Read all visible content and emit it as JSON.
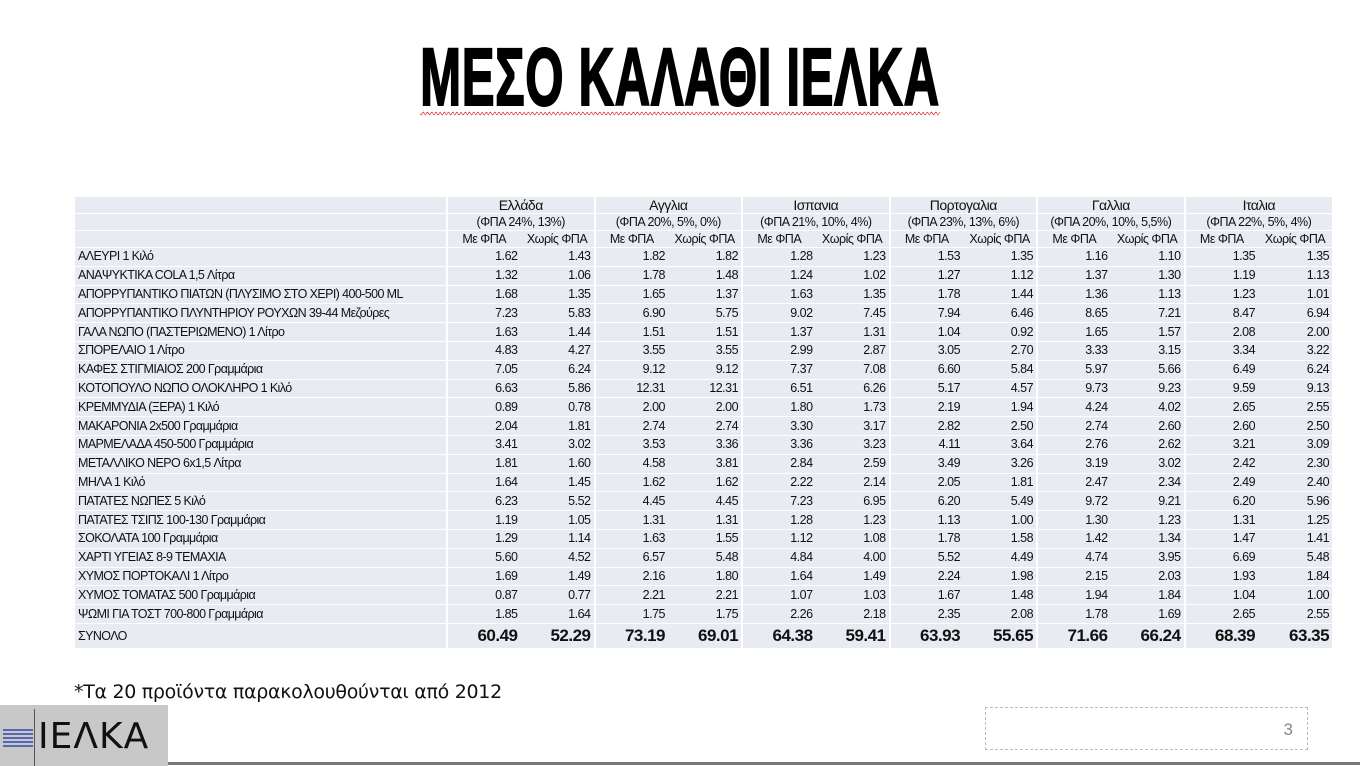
{
  "title": "ΜΕΣΟ ΚΑΛΑΘΙ ΙΕΛΚΑ",
  "table": {
    "countries": [
      {
        "name": "Ελλάδα",
        "vat": "(ΦΠΑ 24%, 13%)"
      },
      {
        "name": "Αγγλια",
        "vat": "(ΦΠΑ 20%, 5%, 0%)"
      },
      {
        "name": "Ισπανια",
        "vat": "(ΦΠΑ 21%, 10%, 4%)"
      },
      {
        "name": "Πορτογαλια",
        "vat": "(ΦΠΑ 23%, 13%, 6%)"
      },
      {
        "name": "Γαλλια",
        "vat": "(ΦΠΑ 20%, 10%, 5,5%)"
      },
      {
        "name": "Ιταλια",
        "vat": "(ΦΠΑ 22%, 5%, 4%)"
      }
    ],
    "subheaders": [
      "Με ΦΠΑ",
      "Χωρίς ΦΠΑ"
    ],
    "rows": [
      {
        "label": "ΑΛΕΥΡΙ 1 Κιλό",
        "values": [
          "1.62",
          "1.43",
          "1.82",
          "1.82",
          "1.28",
          "1.23",
          "1.53",
          "1.35",
          "1.16",
          "1.10",
          "1.35",
          "1.35"
        ]
      },
      {
        "label": "ΑΝΑΨΥΚΤΙΚΑ COLA 1,5 Λίτρα",
        "values": [
          "1.32",
          "1.06",
          "1.78",
          "1.48",
          "1.24",
          "1.02",
          "1.27",
          "1.12",
          "1.37",
          "1.30",
          "1.19",
          "1.13"
        ]
      },
      {
        "label": "ΑΠΟΡΡΥΠΑΝΤΙΚΟ ΠΙΑΤΩΝ (ΠΛΥΣΙΜΟ ΣΤΟ ΧΕΡΙ) 400-500 ML",
        "values": [
          "1.68",
          "1.35",
          "1.65",
          "1.37",
          "1.63",
          "1.35",
          "1.78",
          "1.44",
          "1.36",
          "1.13",
          "1.23",
          "1.01"
        ]
      },
      {
        "label": "ΑΠΟΡΡΥΠΑΝΤΙΚΟ ΠΛΥΝΤΗΡΙΟΥ ΡΟΥΧΩΝ 39-44 Μεζούρες",
        "values": [
          "7.23",
          "5.83",
          "6.90",
          "5.75",
          "9.02",
          "7.45",
          "7.94",
          "6.46",
          "8.65",
          "7.21",
          "8.47",
          "6.94"
        ]
      },
      {
        "label": "ΓΑΛΑ ΝΩΠΟ (ΠΑΣΤΕΡΙΩΜΕΝΟ) 1 Λίτρο",
        "values": [
          "1.63",
          "1.44",
          "1.51",
          "1.51",
          "1.37",
          "1.31",
          "1.04",
          "0.92",
          "1.65",
          "1.57",
          "2.08",
          "2.00"
        ]
      },
      {
        "label": "ΣΠΟΡΕΛΑΙΟ 1 Λίτρο",
        "values": [
          "4.83",
          "4.27",
          "3.55",
          "3.55",
          "2.99",
          "2.87",
          "3.05",
          "2.70",
          "3.33",
          "3.15",
          "3.34",
          "3.22"
        ]
      },
      {
        "label": "ΚΑΦΕΣ ΣΤΙΓΜΙΑΙΟΣ 200 Γραμμάρια",
        "values": [
          "7.05",
          "6.24",
          "9.12",
          "9.12",
          "7.37",
          "7.08",
          "6.60",
          "5.84",
          "5.97",
          "5.66",
          "6.49",
          "6.24"
        ]
      },
      {
        "label": "ΚΟΤΟΠΟΥΛΟ ΝΩΠΟ ΟΛΟΚΛΗΡΟ 1 Κιλό",
        "values": [
          "6.63",
          "5.86",
          "12.31",
          "12.31",
          "6.51",
          "6.26",
          "5.17",
          "4.57",
          "9.73",
          "9.23",
          "9.59",
          "9.13"
        ]
      },
      {
        "label": "ΚΡΕΜΜΥΔΙΑ (ΞΕΡΑ) 1 Κιλό",
        "values": [
          "0.89",
          "0.78",
          "2.00",
          "2.00",
          "1.80",
          "1.73",
          "2.19",
          "1.94",
          "4.24",
          "4.02",
          "2.65",
          "2.55"
        ]
      },
      {
        "label": "ΜΑΚΑΡΟΝΙΑ 2x500 Γραμμάρια",
        "values": [
          "2.04",
          "1.81",
          "2.74",
          "2.74",
          "3.30",
          "3.17",
          "2.82",
          "2.50",
          "2.74",
          "2.60",
          "2.60",
          "2.50"
        ]
      },
      {
        "label": "ΜΑΡΜΕΛΑΔΑ 450-500 Γραμμάρια",
        "values": [
          "3.41",
          "3.02",
          "3.53",
          "3.36",
          "3.36",
          "3.23",
          "4.11",
          "3.64",
          "2.76",
          "2.62",
          "3.21",
          "3.09"
        ]
      },
      {
        "label": "ΜΕΤΑΛΛΙΚΟ ΝΕΡΟ 6x1,5 Λίτρα",
        "values": [
          "1.81",
          "1.60",
          "4.58",
          "3.81",
          "2.84",
          "2.59",
          "3.49",
          "3.26",
          "3.19",
          "3.02",
          "2.42",
          "2.30"
        ]
      },
      {
        "label": "ΜΗΛΑ 1 Κιλό",
        "values": [
          "1.64",
          "1.45",
          "1.62",
          "1.62",
          "2.22",
          "2.14",
          "2.05",
          "1.81",
          "2.47",
          "2.34",
          "2.49",
          "2.40"
        ]
      },
      {
        "label": "ΠΑΤΑΤΕΣ ΝΩΠΕΣ 5 Κιλό",
        "values": [
          "6.23",
          "5.52",
          "4.45",
          "4.45",
          "7.23",
          "6.95",
          "6.20",
          "5.49",
          "9.72",
          "9.21",
          "6.20",
          "5.96"
        ]
      },
      {
        "label": "ΠΑΤΑΤΕΣ ΤΣΙΠΣ 100-130 Γραμμάρια",
        "values": [
          "1.19",
          "1.05",
          "1.31",
          "1.31",
          "1.28",
          "1.23",
          "1.13",
          "1.00",
          "1.30",
          "1.23",
          "1.31",
          "1.25"
        ]
      },
      {
        "label": "ΣΟΚΟΛΑΤΑ 100 Γραμμάρια",
        "values": [
          "1.29",
          "1.14",
          "1.63",
          "1.55",
          "1.12",
          "1.08",
          "1.78",
          "1.58",
          "1.42",
          "1.34",
          "1.47",
          "1.41"
        ]
      },
      {
        "label": "ΧΑΡΤΙ ΥΓΕΙΑΣ 8-9 ΤΕΜΑΧΙΑ",
        "values": [
          "5.60",
          "4.52",
          "6.57",
          "5.48",
          "4.84",
          "4.00",
          "5.52",
          "4.49",
          "4.74",
          "3.95",
          "6.69",
          "5.48"
        ]
      },
      {
        "label": "ΧΥΜΟΣ ΠΟΡΤΟΚΑΛΙ 1 Λίτρο",
        "values": [
          "1.69",
          "1.49",
          "2.16",
          "1.80",
          "1.64",
          "1.49",
          "2.24",
          "1.98",
          "2.15",
          "2.03",
          "1.93",
          "1.84"
        ]
      },
      {
        "label": "ΧΥΜΟΣ ΤΟΜΑΤΑΣ 500 Γραμμάρια",
        "values": [
          "0.87",
          "0.77",
          "2.21",
          "2.21",
          "1.07",
          "1.03",
          "1.67",
          "1.48",
          "1.94",
          "1.84",
          "1.04",
          "1.00"
        ]
      },
      {
        "label": "ΨΩΜΙ ΓΙΑ ΤΟΣΤ 700-800 Γραμμάρια",
        "values": [
          "1.85",
          "1.64",
          "1.75",
          "1.75",
          "2.26",
          "2.18",
          "2.35",
          "2.08",
          "1.78",
          "1.69",
          "2.65",
          "2.55"
        ]
      }
    ],
    "total": {
      "label": "ΣΥΝΟΛΟ",
      "values": [
        "60.49",
        "52.29",
        "73.19",
        "69.01",
        "64.38",
        "59.41",
        "63.93",
        "55.65",
        "71.66",
        "66.24",
        "68.39",
        "63.35"
      ]
    }
  },
  "footnote": "*Τα 20 προϊόντα παρακολουθούνται από 2012",
  "logo": {
    "text": "ΙΕΛΚΑ"
  },
  "page_number": "3"
}
